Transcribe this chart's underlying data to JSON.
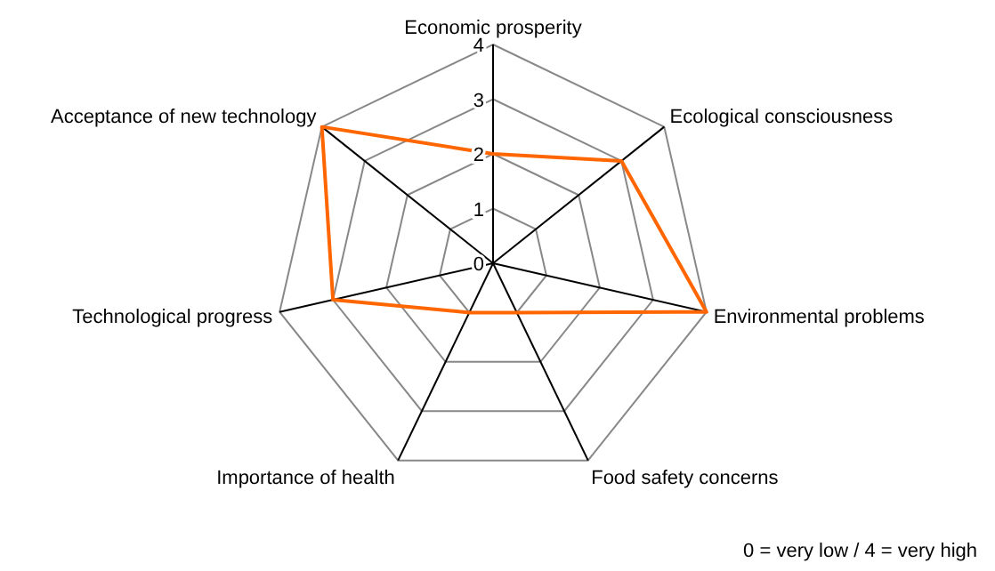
{
  "chart_data": {
    "type": "radar",
    "categories": [
      "Economic prosperity",
      "Ecological consciousness",
      "Environmental problems",
      "Food safety concerns",
      "Importance of health",
      "Technological progress",
      "Acceptance of new technology"
    ],
    "series": [
      {
        "color": "#ff6600",
        "values": [
          2,
          3,
          4,
          1,
          1,
          3,
          4
        ]
      }
    ],
    "ylim": [
      0,
      4
    ],
    "yticks": [
      0,
      1,
      2,
      3,
      4
    ],
    "grid": true,
    "annotations": [
      "0 = very low / 4 = very high"
    ]
  }
}
